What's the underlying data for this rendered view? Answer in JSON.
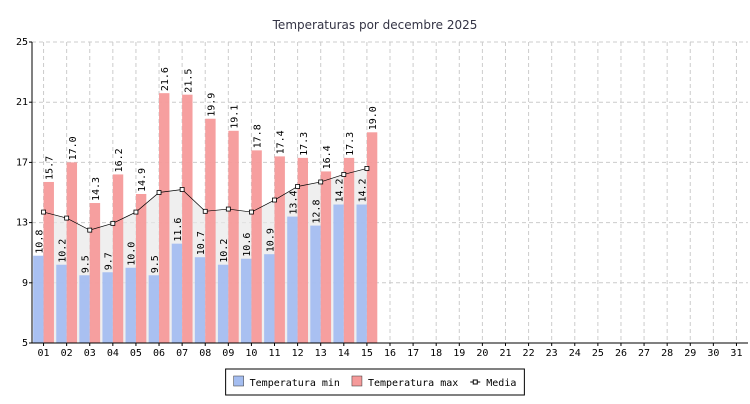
{
  "chart_data": {
    "type": "bar",
    "title": "Temperaturas por decembre 2025",
    "categories": [
      "01",
      "02",
      "03",
      "04",
      "05",
      "06",
      "07",
      "08",
      "09",
      "10",
      "11",
      "12",
      "13",
      "14",
      "15",
      "16",
      "17",
      "18",
      "19",
      "20",
      "21",
      "22",
      "23",
      "24",
      "25",
      "26",
      "27",
      "28",
      "29",
      "30",
      "31"
    ],
    "series": [
      {
        "name": "Temperatura min",
        "color": "#a4bdf0",
        "values": [
          10.8,
          10.2,
          9.5,
          9.7,
          10.0,
          9.5,
          11.6,
          10.7,
          10.2,
          10.6,
          10.9,
          13.4,
          12.8,
          14.2,
          14.2,
          null,
          null,
          null,
          null,
          null,
          null,
          null,
          null,
          null,
          null,
          null,
          null,
          null,
          null,
          null,
          null
        ],
        "value_labels": [
          "10.8",
          "10.2",
          "9.5",
          "9.7",
          "10.0",
          "9.5",
          "11.6",
          "10.7",
          "10.2",
          "10.6",
          "10.9",
          "13.4",
          "12.8",
          "14.2",
          "14.2",
          null,
          null,
          null,
          null,
          null,
          null,
          null,
          null,
          null,
          null,
          null,
          null,
          null,
          null,
          null,
          null
        ]
      },
      {
        "name": "Temperatura max",
        "color": "#f59a9a",
        "values": [
          15.7,
          17.0,
          14.3,
          16.2,
          14.9,
          21.6,
          21.5,
          19.9,
          19.1,
          17.8,
          17.4,
          17.3,
          16.4,
          17.3,
          19.0,
          null,
          null,
          null,
          null,
          null,
          null,
          null,
          null,
          null,
          null,
          null,
          null,
          null,
          null,
          null,
          null
        ],
        "value_labels": [
          "15.7",
          "17.0",
          "14.3",
          "16.2",
          "14.9",
          "21.6",
          "21.5",
          "19.9",
          "19.1",
          "17.8",
          "17.4",
          "17.3",
          "16.4",
          "17.3",
          "19.0",
          null,
          null,
          null,
          null,
          null,
          null,
          null,
          null,
          null,
          null,
          null,
          null,
          null,
          null,
          null,
          null
        ]
      },
      {
        "name": "Media",
        "type": "line",
        "color": "#000000",
        "values": [
          13.7,
          13.3,
          12.5,
          12.95,
          13.7,
          15.0,
          15.2,
          13.75,
          13.9,
          13.7,
          14.5,
          15.4,
          15.7,
          16.2,
          16.6,
          null,
          null,
          null,
          null,
          null,
          null,
          null,
          null,
          null,
          null,
          null,
          null,
          null,
          null,
          null,
          null
        ]
      }
    ],
    "ylim": [
      5,
      25
    ],
    "yticks": [
      5,
      9,
      13,
      17,
      21,
      25
    ],
    "grid": true,
    "legend": "bottom"
  }
}
